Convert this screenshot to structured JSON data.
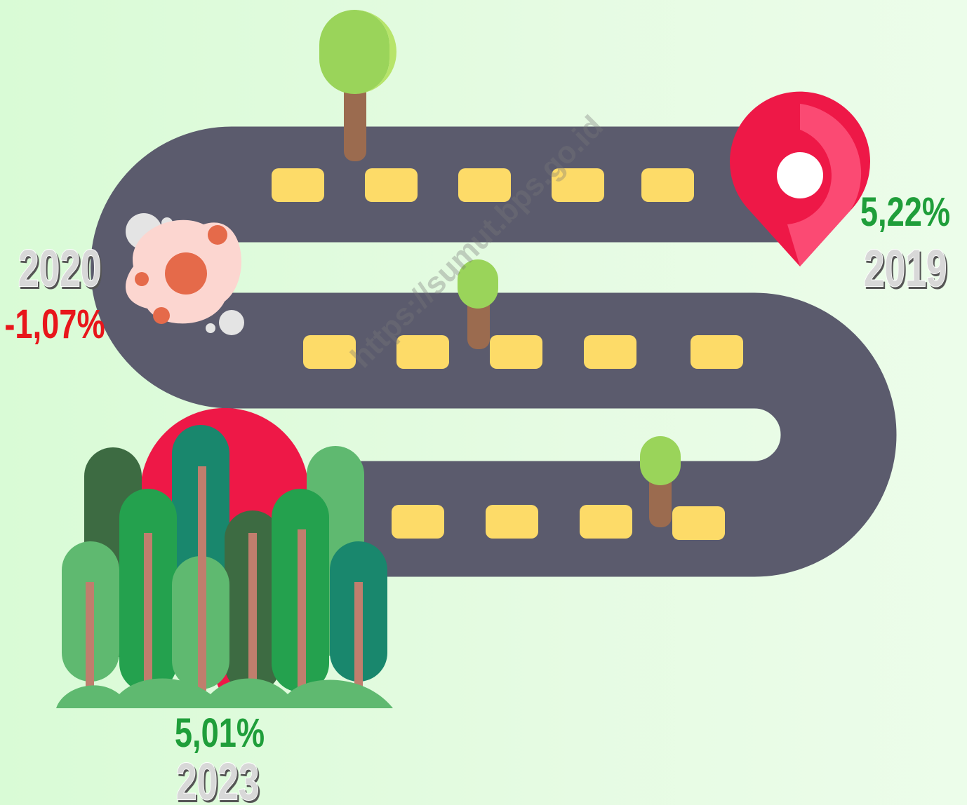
{
  "watermark": "https://sumut.bps.go.id",
  "milestones": [
    {
      "year": "2019",
      "growth": "5,22%"
    },
    {
      "year": "2020",
      "growth": "-1,07%"
    },
    {
      "year": "2023",
      "growth": "5,01%"
    }
  ]
}
